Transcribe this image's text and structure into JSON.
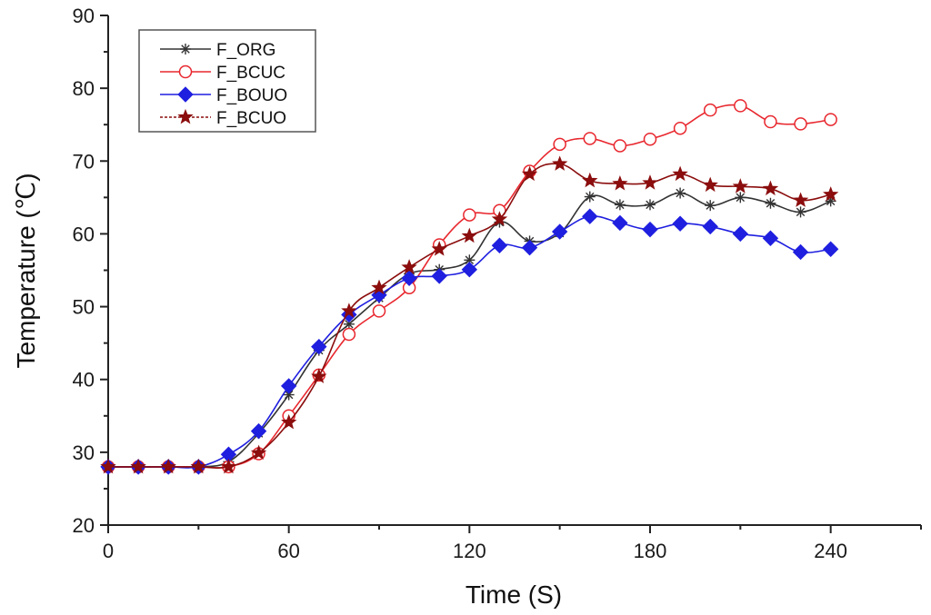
{
  "chart_data": {
    "type": "line",
    "title": "",
    "xlabel": "Time (S)",
    "ylabel": "Temperature (℃)",
    "xlim": [
      0,
      270
    ],
    "ylim": [
      20,
      90
    ],
    "x_ticks": [
      0,
      60,
      120,
      180,
      240
    ],
    "x_minor_ticks": [
      30,
      90,
      150,
      210,
      270
    ],
    "y_ticks": [
      20,
      30,
      40,
      50,
      60,
      70,
      80,
      90
    ],
    "y_minor_ticks": [
      25,
      35,
      45,
      55,
      65,
      75,
      85
    ],
    "grid": false,
    "legend_position": "top-left",
    "x": [
      0,
      10,
      20,
      30,
      40,
      50,
      60,
      70,
      80,
      90,
      100,
      110,
      120,
      130,
      140,
      150,
      160,
      170,
      180,
      190,
      200,
      210,
      220,
      230,
      240
    ],
    "series": [
      {
        "name": "F_ORG",
        "color": "#333333",
        "marker": "asterisk",
        "line_style": "solid",
        "values": [
          28,
          28,
          28,
          28,
          28.7,
          32.6,
          37.9,
          44.0,
          47.6,
          51.2,
          54.5,
          55.1,
          56.4,
          61.6,
          59.0,
          60.1,
          65.1,
          64.0,
          64.0,
          65.6,
          63.9,
          65.0,
          64.2,
          63.0,
          64.5
        ]
      },
      {
        "name": "F_BCUC",
        "color": "#e8262d",
        "marker": "open-circle",
        "line_style": "solid",
        "values": [
          28,
          28,
          28,
          28,
          28,
          29.8,
          35.0,
          40.6,
          46.2,
          49.4,
          52.6,
          58.5,
          62.6,
          63.2,
          68.6,
          72.3,
          73.1,
          72.1,
          73.0,
          74.5,
          77.0,
          77.6,
          75.4,
          75.1,
          75.7
        ]
      },
      {
        "name": "F_BOUO",
        "color": "#1f1fe0",
        "marker": "filled-diamond",
        "line_style": "solid",
        "values": [
          28,
          28,
          28,
          28,
          29.7,
          32.9,
          39.1,
          44.5,
          48.9,
          51.6,
          53.9,
          54.2,
          55.1,
          58.4,
          58.1,
          60.3,
          62.4,
          61.5,
          60.6,
          61.4,
          61.0,
          60.0,
          59.4,
          57.5,
          57.9
        ]
      },
      {
        "name": "F_BCUO",
        "color": "#8b0d0d",
        "marker": "filled-star",
        "line_style": "dashed",
        "values": [
          28,
          28,
          28,
          28,
          28,
          29.9,
          34.1,
          40.4,
          49.4,
          52.6,
          55.4,
          57.9,
          59.7,
          62.0,
          68.2,
          69.6,
          67.3,
          66.9,
          67.0,
          68.2,
          66.7,
          66.5,
          66.2,
          64.6,
          65.4
        ]
      }
    ]
  }
}
